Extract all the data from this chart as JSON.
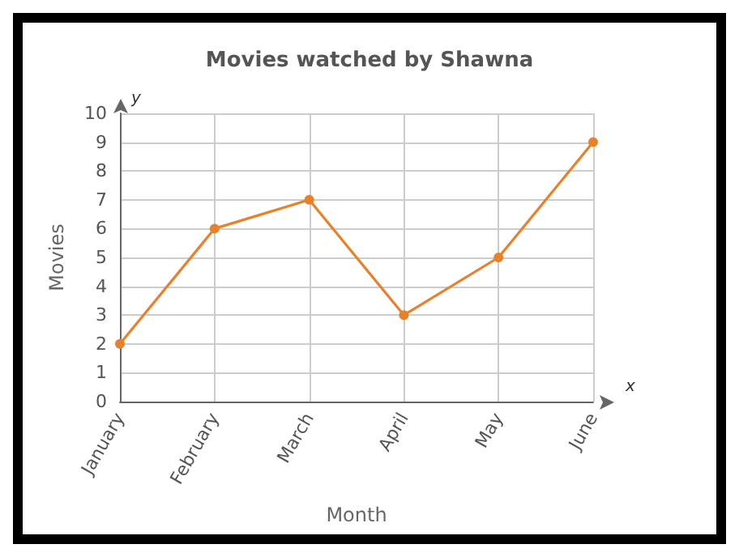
{
  "chart_data": {
    "type": "line",
    "title": "Movies watched by Shawna",
    "xlabel": "Month",
    "ylabel": "Movies",
    "annotations": [
      "y",
      "x"
    ],
    "categories": [
      "January",
      "February",
      "March",
      "April",
      "May",
      "June"
    ],
    "series": [
      {
        "color": "#e8822a",
        "values": [
          2,
          6,
          7,
          3,
          5,
          9
        ]
      }
    ],
    "ylim": [
      0,
      10
    ],
    "yticks": [
      0,
      1,
      2,
      3,
      4,
      5,
      6,
      7,
      8,
      9,
      10
    ],
    "grid": true,
    "marker": "circle",
    "line_style": "solid"
  }
}
